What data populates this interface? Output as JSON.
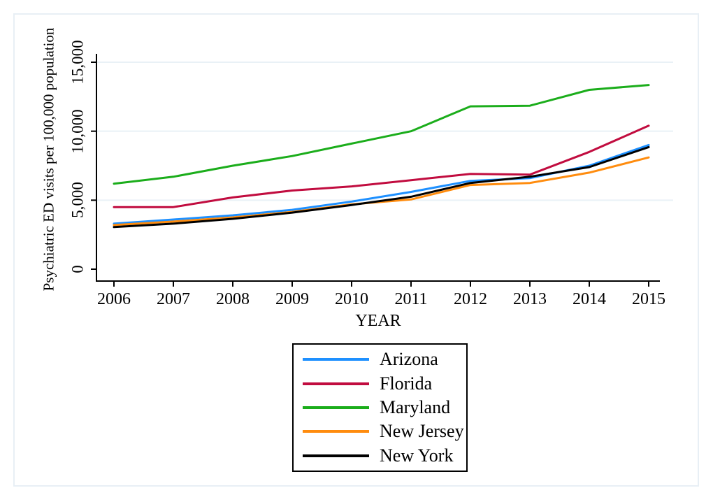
{
  "chart_data": {
    "type": "line",
    "title": "",
    "xlabel": "YEAR",
    "ylabel": "Psychiatric ED visits per 100,000 population",
    "x": [
      2006,
      2007,
      2008,
      2009,
      2010,
      2011,
      2012,
      2013,
      2014,
      2015
    ],
    "x_tick_labels": [
      "2006",
      "2007",
      "2008",
      "2009",
      "2010",
      "2011",
      "2012",
      "2013",
      "2014",
      "2015"
    ],
    "y_ticks": [
      0,
      5000,
      10000,
      15000
    ],
    "y_tick_labels": [
      "0",
      "5,000",
      "10,000",
      "15,000"
    ],
    "ylim": [
      0,
      15600
    ],
    "grid": "horizontal-light",
    "legend_position": "bottom-center",
    "series": [
      {
        "name": "Arizona",
        "color": "#1E90FF",
        "values": [
          3300,
          3600,
          3900,
          4300,
          4900,
          5600,
          6400,
          6600,
          7500,
          9000
        ]
      },
      {
        "name": "Florida",
        "color": "#C10C3F",
        "values": [
          4500,
          4500,
          5200,
          5700,
          6000,
          6450,
          6900,
          6850,
          8500,
          10400
        ]
      },
      {
        "name": "Maryland",
        "color": "#1BAD1B",
        "values": [
          6200,
          6700,
          7500,
          8200,
          9100,
          10000,
          11800,
          11850,
          13000,
          13350
        ]
      },
      {
        "name": "New Jersey",
        "color": "#FF8C0E",
        "values": [
          3200,
          3450,
          3750,
          4150,
          4700,
          5050,
          6100,
          6250,
          7000,
          8100
        ]
      },
      {
        "name": "New York",
        "color": "#000000",
        "values": [
          3050,
          3300,
          3650,
          4100,
          4650,
          5250,
          6250,
          6700,
          7400,
          8850
        ]
      }
    ],
    "colors": {
      "axis": "#000000",
      "gridline": "#e9f1f6",
      "frame": "#e8eff5",
      "legend_border": "#000000"
    }
  }
}
